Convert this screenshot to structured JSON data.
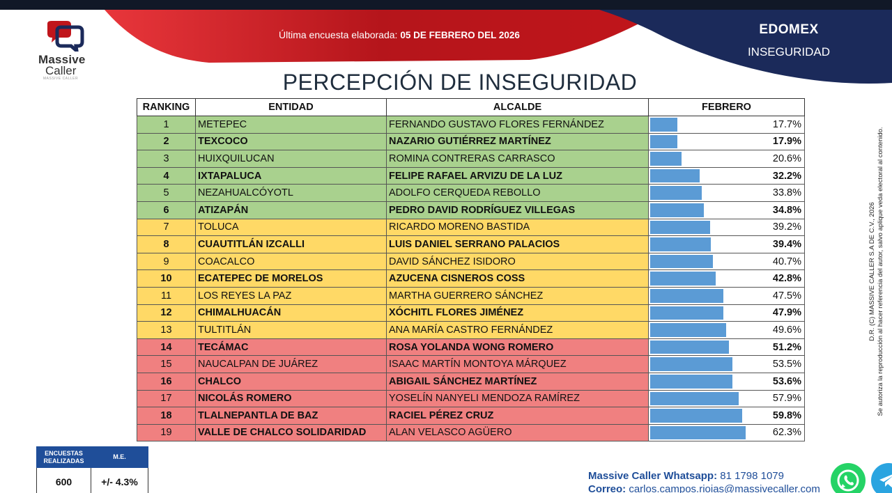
{
  "header": {
    "logo_line1": "Massive",
    "logo_line2": "Caller",
    "logo_sub": "MASSIVE CALLER",
    "survey_label": "Última encuesta elaborada:",
    "survey_date": "05 DE FEBRERO DEL 2026",
    "region": "EDOMEX",
    "topic": "INSEGURIDAD"
  },
  "colors": {
    "green": "#a9d18e",
    "yellow": "#ffd966",
    "red": "#f08080",
    "bar": "#5b9bd5",
    "brand_red": "#c0151b",
    "brand_navy": "#1b2a5a"
  },
  "table": {
    "columns": [
      "RANKING",
      "ENTIDAD",
      "ALCALDE",
      "FEBRERO"
    ]
  },
  "chart_data": {
    "type": "bar",
    "title": "PERCEPCIÓN DE INSEGURIDAD",
    "series": [
      {
        "name": "FEBRERO"
      }
    ],
    "rows": [
      {
        "rank": "1",
        "entity": "METEPEC",
        "mayor": "FERNANDO GUSTAVO FLORES FERNÁNDEZ",
        "value": 17.7,
        "label": "17.7%",
        "band": "green",
        "bold": false
      },
      {
        "rank": "2",
        "entity": "TEXCOCO",
        "mayor": "NAZARIO GUTIÉRREZ MARTÍNEZ",
        "value": 17.9,
        "label": "17.9%",
        "band": "green",
        "bold": true
      },
      {
        "rank": "3",
        "entity": "HUIXQUILUCAN",
        "mayor": "ROMINA CONTRERAS CARRASCO",
        "value": 20.6,
        "label": "20.6%",
        "band": "green",
        "bold": false
      },
      {
        "rank": "4",
        "entity": "IXTAPALUCA",
        "mayor": "FELIPE RAFAEL ARVIZU DE LA LUZ",
        "value": 32.2,
        "label": "32.2%",
        "band": "green",
        "bold": true
      },
      {
        "rank": "5",
        "entity": "NEZAHUALCÓYOTL",
        "mayor": "ADOLFO CERQUEDA REBOLLO",
        "value": 33.8,
        "label": "33.8%",
        "band": "green",
        "bold": false
      },
      {
        "rank": "6",
        "entity": "ATIZAPÁN",
        "mayor": "PEDRO DAVID RODRÍGUEZ VILLEGAS",
        "value": 34.8,
        "label": "34.8%",
        "band": "green",
        "bold": true
      },
      {
        "rank": "7",
        "entity": "TOLUCA",
        "mayor": "RICARDO MORENO BASTIDA",
        "value": 39.2,
        "label": "39.2%",
        "band": "yellow",
        "bold": false
      },
      {
        "rank": "8",
        "entity": "CUAUTITLÁN IZCALLI",
        "mayor": "LUIS DANIEL SERRANO PALACIOS",
        "value": 39.4,
        "label": "39.4%",
        "band": "yellow",
        "bold": true
      },
      {
        "rank": "9",
        "entity": "COACALCO",
        "mayor": "DAVID SÁNCHEZ ISIDORO",
        "value": 40.7,
        "label": "40.7%",
        "band": "yellow",
        "bold": false
      },
      {
        "rank": "10",
        "entity": "ECATEPEC DE MORELOS",
        "mayor": "AZUCENA CISNEROS COSS",
        "value": 42.8,
        "label": "42.8%",
        "band": "yellow",
        "bold": true
      },
      {
        "rank": "11",
        "entity": "LOS REYES LA PAZ",
        "mayor": "MARTHA GUERRERO SÁNCHEZ",
        "value": 47.5,
        "label": "47.5%",
        "band": "yellow",
        "bold": false
      },
      {
        "rank": "12",
        "entity": "CHIMALHUACÁN",
        "mayor": "XÓCHITL FLORES JIMÉNEZ",
        "value": 47.9,
        "label": "47.9%",
        "band": "yellow",
        "bold": true
      },
      {
        "rank": "13",
        "entity": "TULTITLÁN",
        "mayor": "ANA MARÍA CASTRO FERNÁNDEZ",
        "value": 49.6,
        "label": "49.6%",
        "band": "yellow",
        "bold": false
      },
      {
        "rank": "14",
        "entity": "TECÁMAC",
        "mayor": "ROSA YOLANDA WONG ROMERO",
        "value": 51.2,
        "label": "51.2%",
        "band": "red",
        "bold": true
      },
      {
        "rank": "15",
        "entity": "NAUCALPAN DE JUÁREZ",
        "mayor": "ISAAC MARTÍN MONTOYA MÁRQUEZ",
        "value": 53.5,
        "label": "53.5%",
        "band": "red",
        "bold": false
      },
      {
        "rank": "16",
        "entity": "CHALCO",
        "mayor": "ABIGAIL SÁNCHEZ MARTÍNEZ",
        "value": 53.6,
        "label": "53.6%",
        "band": "red",
        "bold": true
      },
      {
        "rank": "17",
        "entity": "NICOLÁS ROMERO",
        "mayor": "YOSELÍN NANYELI MENDOZA RAMÍREZ",
        "value": 57.9,
        "label": "57.9%",
        "band": "red",
        "bold": false,
        "entity_bold": true
      },
      {
        "rank": "18",
        "entity": "TLALNEPANTLA DE BAZ",
        "mayor": "RACIEL PÉREZ CRUZ",
        "value": 59.8,
        "label": "59.8%",
        "band": "red",
        "bold": true
      },
      {
        "rank": "19",
        "entity": "VALLE DE CHALCO SOLIDARIDAD",
        "mayor": "ALAN VELASCO AGÜERO",
        "value": 62.3,
        "label": "62.3%",
        "band": "red",
        "bold": false,
        "entity_bold": true
      }
    ]
  },
  "stats": {
    "col1_header_line1": "ENCUESTAS",
    "col1_header_line2": "REALIZADAS",
    "col2_header": "M.E.",
    "surveys": "600",
    "margin_error": "+/- 4.3%"
  },
  "contact": {
    "whatsapp_label": "Massive Caller Whatsapp:",
    "whatsapp_number": "81 1798 1079",
    "email_label": "Correo:",
    "email": "carlos.campos.rioias@massivecaller.com"
  },
  "side_note": {
    "line1": "D.R. (C) MASSIVE CALLER S.A DE C.V., 2026",
    "line2": "Se autoriza la reproducción al hacer referencia del autor, salvo aplique veda electoral al contenido."
  }
}
